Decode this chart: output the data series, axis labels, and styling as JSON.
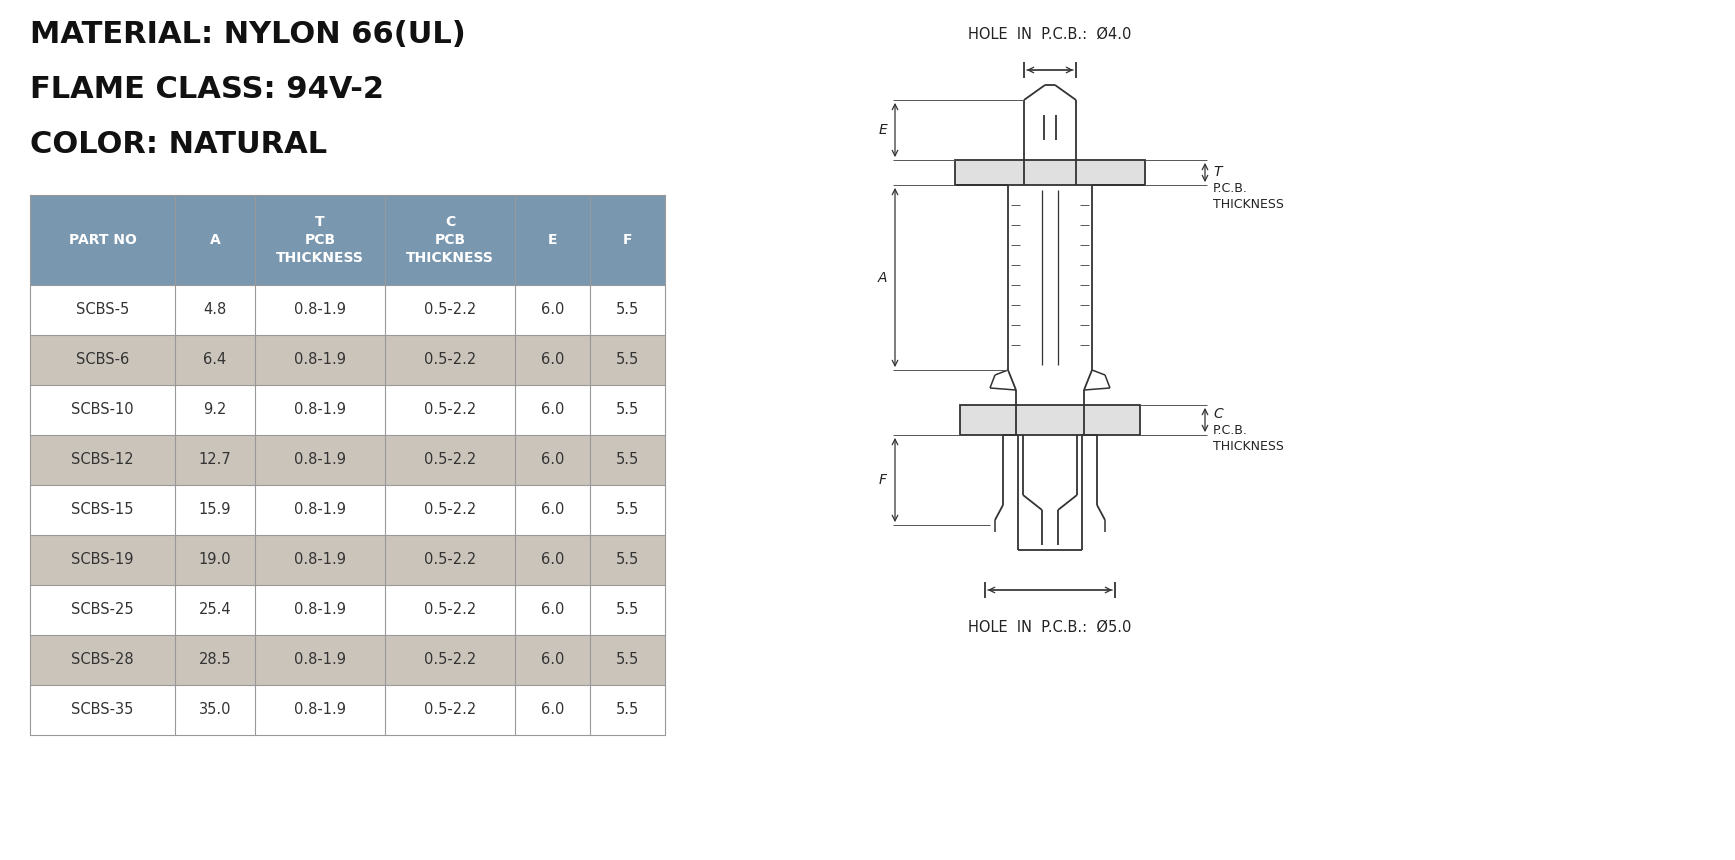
{
  "title_lines": [
    "MATERIAL: NYLON 66(UL)",
    "FLAME CLASS: 94V-2",
    "COLOR: NATURAL"
  ],
  "title_fontsize": 22,
  "rows": [
    [
      "SCBS-5",
      "4.8",
      "0.8-1.9",
      "0.5-2.2",
      "6.0",
      "5.5"
    ],
    [
      "SCBS-6",
      "6.4",
      "0.8-1.9",
      "0.5-2.2",
      "6.0",
      "5.5"
    ],
    [
      "SCBS-10",
      "9.2",
      "0.8-1.9",
      "0.5-2.2",
      "6.0",
      "5.5"
    ],
    [
      "SCBS-12",
      "12.7",
      "0.8-1.9",
      "0.5-2.2",
      "6.0",
      "5.5"
    ],
    [
      "SCBS-15",
      "15.9",
      "0.8-1.9",
      "0.5-2.2",
      "6.0",
      "5.5"
    ],
    [
      "SCBS-19",
      "19.0",
      "0.8-1.9",
      "0.5-2.2",
      "6.0",
      "5.5"
    ],
    [
      "SCBS-25",
      "25.4",
      "0.8-1.9",
      "0.5-2.2",
      "6.0",
      "5.5"
    ],
    [
      "SCBS-28",
      "28.5",
      "0.8-1.9",
      "0.5-2.2",
      "6.0",
      "5.5"
    ],
    [
      "SCBS-35",
      "35.0",
      "0.8-1.9",
      "0.5-2.2",
      "6.0",
      "5.5"
    ]
  ],
  "header_bg": "#7a97b0",
  "header_fg": "#ffffff",
  "row_odd_bg": "#ffffff",
  "row_even_bg": "#cbc4bb",
  "row_fg": "#333333",
  "border_color": "#999999",
  "hole_top_label": "HOLE  IN  P.C.B.:  Ø4.0",
  "hole_bottom_label": "HOLE  IN  P.C.B.:  Ø5.0",
  "bg_color": "#ffffff",
  "draw_color": "#333333"
}
